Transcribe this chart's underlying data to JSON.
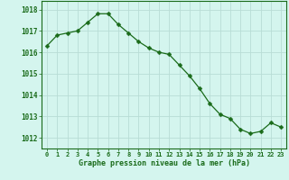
{
  "x": [
    0,
    1,
    2,
    3,
    4,
    5,
    6,
    7,
    8,
    9,
    10,
    11,
    12,
    13,
    14,
    15,
    16,
    17,
    18,
    19,
    20,
    21,
    22,
    23
  ],
  "y": [
    1016.3,
    1016.8,
    1016.9,
    1017.0,
    1017.4,
    1017.8,
    1017.8,
    1017.3,
    1016.9,
    1016.5,
    1016.2,
    1016.0,
    1015.9,
    1015.4,
    1014.9,
    1014.3,
    1013.6,
    1013.1,
    1012.9,
    1012.4,
    1012.2,
    1012.3,
    1012.7,
    1012.5
  ],
  "line_color": "#1a6b1a",
  "marker": "D",
  "marker_size": 2.5,
  "bg_color": "#d4f5ee",
  "grid_color": "#b8ddd5",
  "xlabel": "Graphe pression niveau de la mer (hPa)",
  "xlabel_color": "#1a6b1a",
  "tick_color": "#1a6b1a",
  "ylim": [
    1011.5,
    1018.4
  ],
  "yticks": [
    1012,
    1013,
    1014,
    1015,
    1016,
    1017,
    1018
  ],
  "xtick_labels": [
    "0",
    "1",
    "2",
    "3",
    "4",
    "5",
    "6",
    "7",
    "8",
    "9",
    "10",
    "11",
    "12",
    "13",
    "14",
    "15",
    "16",
    "17",
    "18",
    "19",
    "20",
    "21",
    "22",
    "23"
  ],
  "xlim": [
    -0.5,
    23.5
  ]
}
